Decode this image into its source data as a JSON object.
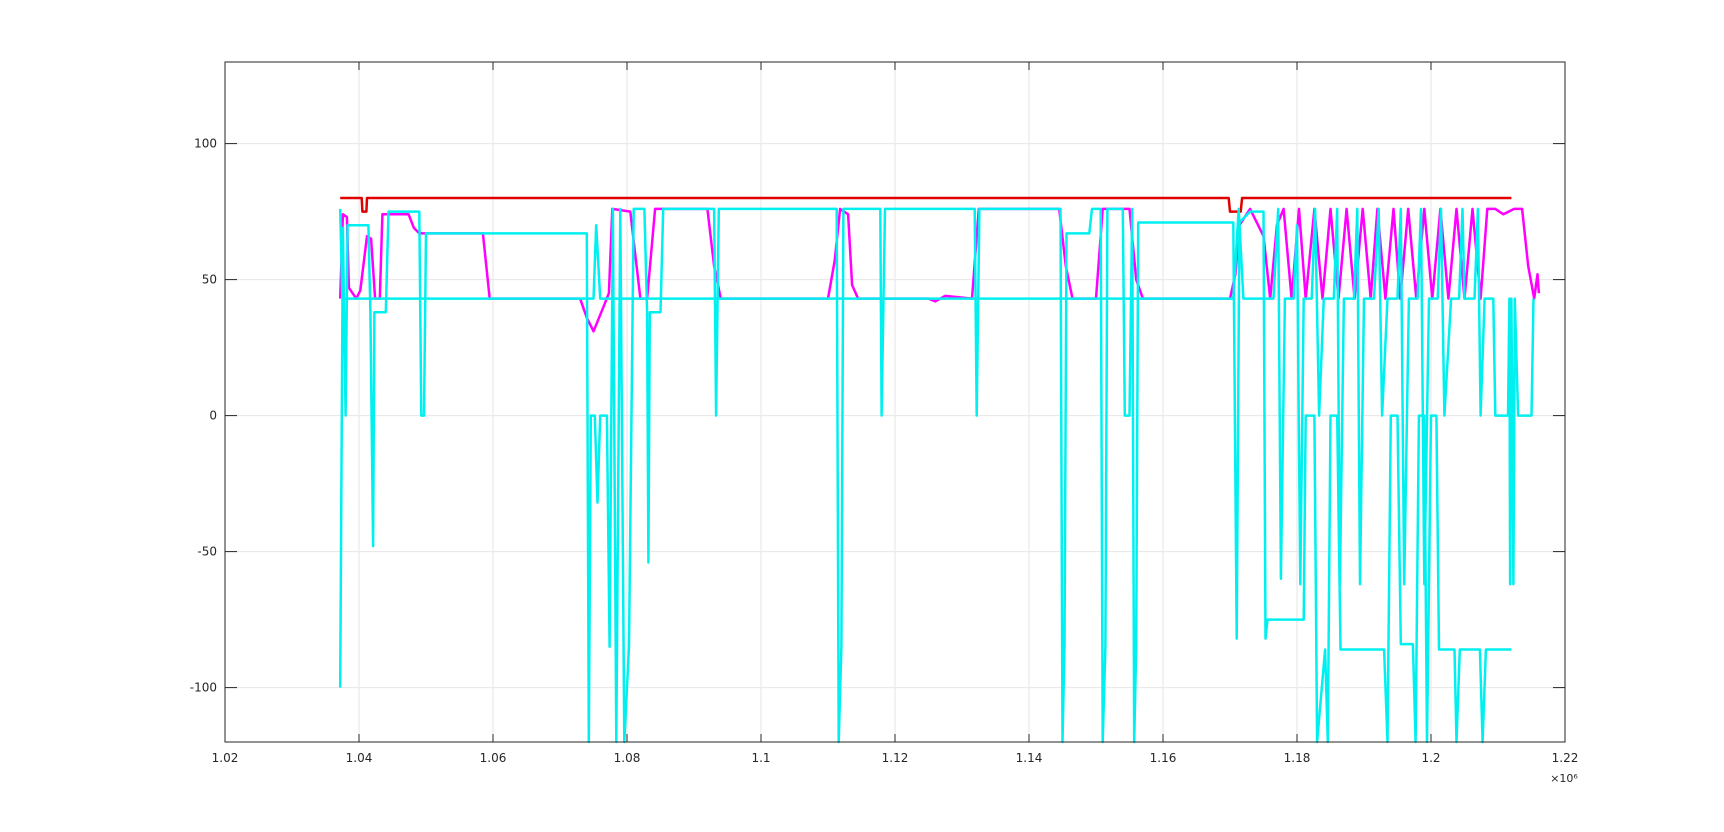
{
  "chart_data": {
    "type": "line",
    "title": "",
    "xlabel": "",
    "ylabel": "",
    "xlim": [
      1020000,
      1220000
    ],
    "ylim": [
      -120,
      130
    ],
    "x_tick_values": [
      1020000,
      1040000,
      1060000,
      1080000,
      1100000,
      1120000,
      1140000,
      1160000,
      1180000,
      1200000,
      1220000
    ],
    "x_tick_labels": [
      "1.02",
      "1.04",
      "1.06",
      "1.08",
      "1.1",
      "1.12",
      "1.14",
      "1.16",
      "1.18",
      "1.2",
      "1.22"
    ],
    "x_exponent_label": "×10⁶",
    "y_tick_values": [
      -100,
      -50,
      0,
      50,
      100
    ],
    "y_tick_labels": [
      "-100",
      "-50",
      "0",
      "50",
      "100"
    ],
    "grid": true,
    "colors": {
      "red": "#e00000",
      "magenta": "#ff00ff",
      "cyan": "#00f0f0",
      "axes": "#262626",
      "grid": "#e6e6e6"
    },
    "series": [
      {
        "color": "#e00000",
        "points": [
          [
            1037200,
            80
          ],
          [
            1040400,
            80
          ],
          [
            1040500,
            75
          ],
          [
            1041100,
            75
          ],
          [
            1041200,
            80
          ],
          [
            1169800,
            80
          ],
          [
            1170000,
            75
          ],
          [
            1171600,
            75
          ],
          [
            1171800,
            80
          ],
          [
            1212000,
            80
          ]
        ]
      },
      {
        "color": "#ff00ff",
        "points": [
          [
            1037200,
            43
          ],
          [
            1037600,
            74
          ],
          [
            1038200,
            73
          ],
          [
            1038500,
            47
          ],
          [
            1039600,
            43
          ],
          [
            1040200,
            46
          ],
          [
            1041200,
            66
          ],
          [
            1041800,
            65
          ],
          [
            1042400,
            43
          ],
          [
            1043100,
            43
          ],
          [
            1043500,
            74
          ],
          [
            1047400,
            74
          ],
          [
            1048200,
            69
          ],
          [
            1049000,
            67
          ],
          [
            1058500,
            67
          ],
          [
            1059500,
            43
          ],
          [
            1073000,
            43
          ],
          [
            1074000,
            36
          ],
          [
            1075000,
            31
          ],
          [
            1076500,
            40
          ],
          [
            1077300,
            45
          ],
          [
            1077800,
            76
          ],
          [
            1080500,
            75
          ],
          [
            1081200,
            60
          ],
          [
            1082000,
            43
          ],
          [
            1083000,
            43
          ],
          [
            1084200,
            76
          ],
          [
            1092000,
            76
          ],
          [
            1093000,
            55
          ],
          [
            1094000,
            43
          ],
          [
            1110000,
            43
          ],
          [
            1111000,
            57
          ],
          [
            1111800,
            76
          ],
          [
            1113000,
            74
          ],
          [
            1113600,
            48
          ],
          [
            1114500,
            43
          ],
          [
            1125000,
            43
          ],
          [
            1126000,
            42
          ],
          [
            1127500,
            44
          ],
          [
            1131500,
            43
          ],
          [
            1132500,
            76
          ],
          [
            1144500,
            76
          ],
          [
            1145500,
            55
          ],
          [
            1146500,
            43
          ],
          [
            1150000,
            43
          ],
          [
            1151000,
            76
          ],
          [
            1155000,
            76
          ],
          [
            1156000,
            50
          ],
          [
            1157000,
            43
          ],
          [
            1170000,
            43
          ],
          [
            1170800,
            52
          ],
          [
            1171400,
            70
          ],
          [
            1173000,
            76
          ],
          [
            1175000,
            66
          ],
          [
            1176000,
            43
          ],
          [
            1177000,
            70
          ],
          [
            1178000,
            76
          ],
          [
            1179200,
            43
          ],
          [
            1180300,
            76
          ],
          [
            1181300,
            43
          ],
          [
            1182600,
            76
          ],
          [
            1183800,
            43
          ],
          [
            1185000,
            76
          ],
          [
            1186200,
            43
          ],
          [
            1187400,
            76
          ],
          [
            1188600,
            43
          ],
          [
            1189800,
            76
          ],
          [
            1191000,
            43
          ],
          [
            1192000,
            76
          ],
          [
            1193200,
            43
          ],
          [
            1194400,
            76
          ],
          [
            1195400,
            43
          ],
          [
            1196600,
            76
          ],
          [
            1197800,
            43
          ],
          [
            1199000,
            76
          ],
          [
            1200200,
            43
          ],
          [
            1201400,
            76
          ],
          [
            1202600,
            43
          ],
          [
            1203800,
            76
          ],
          [
            1205000,
            43
          ],
          [
            1206200,
            76
          ],
          [
            1207400,
            43
          ],
          [
            1208400,
            76
          ],
          [
            1209600,
            76
          ],
          [
            1210800,
            74
          ],
          [
            1212400,
            76
          ],
          [
            1213600,
            76
          ],
          [
            1214500,
            55
          ],
          [
            1215400,
            43
          ],
          [
            1215900,
            52
          ],
          [
            1216100,
            45
          ]
        ]
      },
      {
        "color": "#00f0f0",
        "points": [
          [
            1037200,
            -100
          ],
          [
            1037600,
            69
          ],
          [
            1038000,
            0
          ],
          [
            1038300,
            70
          ],
          [
            1041400,
            70
          ],
          [
            1041700,
            38
          ],
          [
            1042100,
            -48
          ],
          [
            1042300,
            38
          ],
          [
            1044000,
            38
          ],
          [
            1044400,
            75
          ],
          [
            1049000,
            75
          ],
          [
            1049300,
            0
          ],
          [
            1049700,
            0
          ],
          [
            1050000,
            67
          ],
          [
            1074000,
            67
          ],
          [
            1074300,
            -120
          ],
          [
            1074600,
            0
          ],
          [
            1075200,
            0
          ],
          [
            1075600,
            -32
          ],
          [
            1076000,
            0
          ],
          [
            1077000,
            0
          ],
          [
            1077400,
            -85
          ],
          [
            1077900,
            76
          ],
          [
            1078400,
            -120
          ],
          [
            1079000,
            76
          ],
          [
            1079600,
            -120
          ],
          [
            1080300,
            -85
          ],
          [
            1081000,
            76
          ],
          [
            1082600,
            76
          ],
          [
            1083000,
            38
          ],
          [
            1083200,
            -54
          ],
          [
            1083400,
            38
          ],
          [
            1085000,
            38
          ],
          [
            1085400,
            76
          ],
          [
            1093000,
            76
          ],
          [
            1093300,
            0
          ],
          [
            1093700,
            76
          ],
          [
            1111300,
            76
          ],
          [
            1111600,
            -120
          ],
          [
            1112000,
            -85
          ],
          [
            1112300,
            76
          ],
          [
            1117800,
            76
          ],
          [
            1118000,
            0
          ],
          [
            1118500,
            76
          ],
          [
            1131900,
            76
          ],
          [
            1132200,
            0
          ],
          [
            1132600,
            76
          ],
          [
            1144700,
            76
          ],
          [
            1145000,
            -120
          ],
          [
            1145300,
            -85
          ],
          [
            1145600,
            67
          ],
          [
            1148000,
            67
          ],
          [
            1149000,
            67
          ],
          [
            1149400,
            76
          ],
          [
            1150700,
            76
          ],
          [
            1151000,
            -120
          ],
          [
            1151400,
            -85
          ],
          [
            1151700,
            76
          ],
          [
            1154000,
            76
          ],
          [
            1154300,
            0
          ],
          [
            1155000,
            0
          ],
          [
            1155400,
            76
          ],
          [
            1155700,
            -120
          ],
          [
            1156000,
            -85
          ],
          [
            1156300,
            71
          ],
          [
            1170500,
            71
          ],
          [
            1171000,
            -82
          ],
          [
            1171400,
            71
          ],
          [
            1173000,
            75
          ],
          [
            1175000,
            75
          ],
          [
            1175300,
            -82
          ],
          [
            1175600,
            -75
          ],
          [
            1181000,
            -75
          ],
          [
            1181300,
            0
          ],
          [
            1182600,
            0
          ],
          [
            1183000,
            -120
          ],
          [
            1184200,
            -86
          ],
          [
            1184600,
            -120
          ],
          [
            1185000,
            0
          ],
          [
            1186000,
            0
          ],
          [
            1186500,
            -86
          ],
          [
            1193000,
            -86
          ],
          [
            1193500,
            -120
          ],
          [
            1194000,
            0
          ],
          [
            1195000,
            0
          ],
          [
            1195500,
            -84
          ],
          [
            1197300,
            -84
          ],
          [
            1197700,
            -120
          ],
          [
            1198200,
            0
          ],
          [
            1199000,
            0
          ],
          [
            1199400,
            -120
          ],
          [
            1200000,
            0
          ],
          [
            1200800,
            0
          ],
          [
            1201200,
            -86
          ],
          [
            1203500,
            -86
          ],
          [
            1203800,
            -120
          ],
          [
            1204300,
            -86
          ],
          [
            1207300,
            -86
          ],
          [
            1207700,
            -120
          ],
          [
            1208200,
            -86
          ],
          [
            1209000,
            -86
          ],
          [
            1209300,
            -86
          ],
          [
            1212000,
            -86
          ]
        ]
      },
      {
        "color": "#00f0f0",
        "points": [
          [
            1037200,
            76
          ],
          [
            1037500,
            43
          ],
          [
            1053000,
            43
          ],
          [
            1075000,
            43
          ],
          [
            1075400,
            70
          ],
          [
            1076000,
            43
          ],
          [
            1080000,
            43
          ],
          [
            1115000,
            43
          ],
          [
            1150000,
            43
          ],
          [
            1170000,
            43
          ],
          [
            1170500,
            43
          ],
          [
            1171300,
            76
          ],
          [
            1172000,
            43
          ],
          [
            1176500,
            43
          ],
          [
            1177200,
            76
          ],
          [
            1177600,
            -60
          ],
          [
            1178200,
            43
          ],
          [
            1179500,
            43
          ],
          [
            1180000,
            70
          ],
          [
            1180500,
            -62
          ],
          [
            1181000,
            43
          ],
          [
            1182200,
            43
          ],
          [
            1182700,
            76
          ],
          [
            1183300,
            0
          ],
          [
            1184000,
            43
          ],
          [
            1185500,
            43
          ],
          [
            1186000,
            76
          ],
          [
            1186400,
            -62
          ],
          [
            1187000,
            43
          ],
          [
            1188500,
            43
          ],
          [
            1189000,
            76
          ],
          [
            1189400,
            -62
          ],
          [
            1190000,
            43
          ],
          [
            1191500,
            43
          ],
          [
            1192200,
            76
          ],
          [
            1192700,
            0
          ],
          [
            1193500,
            43
          ],
          [
            1195000,
            43
          ],
          [
            1195500,
            76
          ],
          [
            1196000,
            -62
          ],
          [
            1196700,
            43
          ],
          [
            1198000,
            43
          ],
          [
            1198500,
            76
          ],
          [
            1199000,
            -62
          ],
          [
            1199700,
            43
          ],
          [
            1201000,
            43
          ],
          [
            1201500,
            76
          ],
          [
            1202000,
            0
          ],
          [
            1203000,
            43
          ],
          [
            1204200,
            43
          ],
          [
            1204700,
            76
          ],
          [
            1205000,
            43
          ],
          [
            1206500,
            43
          ],
          [
            1207000,
            76
          ],
          [
            1207400,
            0
          ],
          [
            1208000,
            43
          ],
          [
            1209300,
            43
          ],
          [
            1209600,
            0
          ],
          [
            1211500,
            0
          ],
          [
            1211700,
            43
          ],
          [
            1211800,
            -62
          ],
          [
            1212000,
            43
          ],
          [
            1212300,
            -62
          ],
          [
            1212500,
            43
          ],
          [
            1213000,
            0
          ],
          [
            1215000,
            0
          ],
          [
            1215300,
            43
          ]
        ]
      }
    ]
  }
}
